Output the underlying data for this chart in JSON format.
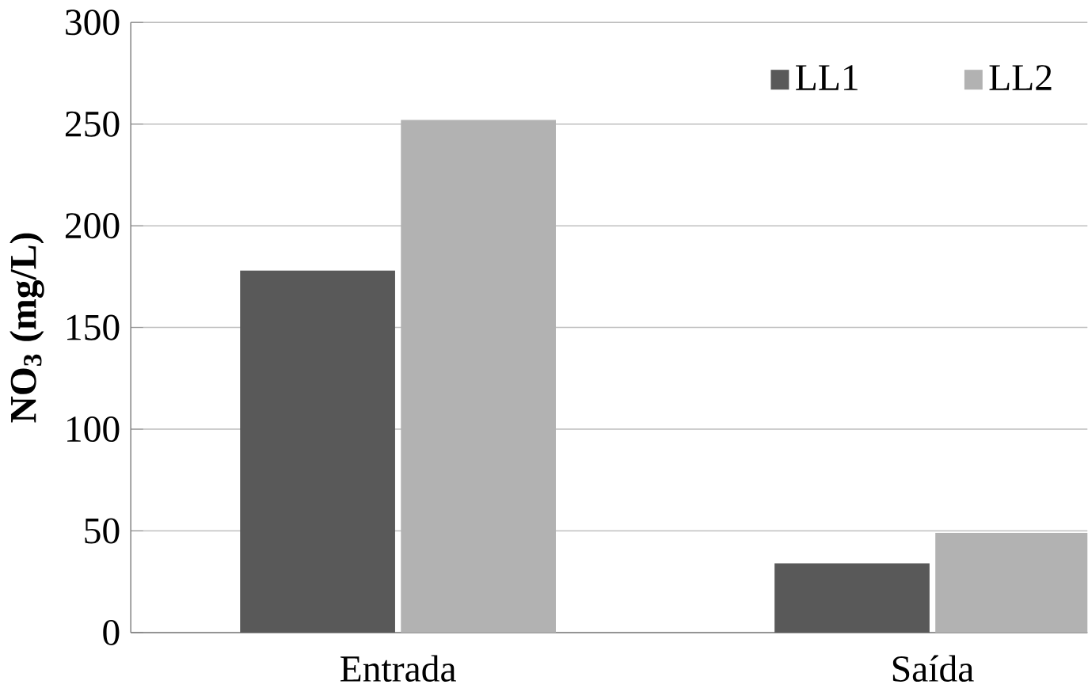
{
  "chart_data": {
    "type": "bar",
    "ylabel": "NO$_{3}$ (mg/L)",
    "categories": [
      "Entrada",
      "Saída"
    ],
    "series": [
      {
        "name": "LL1",
        "color": "#595959",
        "values": [
          178,
          34
        ]
      },
      {
        "name": "LL2",
        "color": "#b2b2b2",
        "values": [
          252,
          49
        ]
      }
    ],
    "ylim": [
      0,
      300
    ],
    "yticks": [
      0,
      50,
      100,
      150,
      200,
      250,
      300
    ],
    "grid": "y",
    "legend": "top right"
  }
}
